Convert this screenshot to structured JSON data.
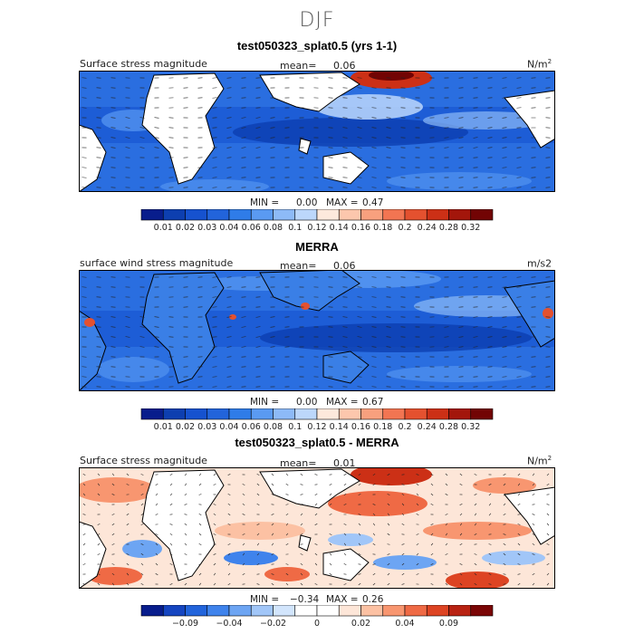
{
  "suptitle": "DJF",
  "colors": {
    "seq": [
      "#081d8c",
      "#0d3fb0",
      "#1652cf",
      "#2264db",
      "#2f7ce8",
      "#5a9af2",
      "#8dbaf7",
      "#bcd7fb",
      "#fde9dc",
      "#fcc7ad",
      "#f8a07e",
      "#f27552",
      "#e4512f",
      "#cc3016",
      "#a3160b",
      "#720404"
    ],
    "div": [
      "#081d8c",
      "#1545c0",
      "#2264db",
      "#3f83ec",
      "#6da5f3",
      "#a1c6f8",
      "#d2e5fc",
      "#ffffff",
      "#ffffff",
      "#fde6d8",
      "#fcc1a3",
      "#f89670",
      "#ef6a45",
      "#dd4423",
      "#b82212",
      "#7a0606"
    ]
  },
  "panels": [
    {
      "title": "test050323_splat0.5 (yrs 1-1)",
      "left_label": "Surface stress magnitude",
      "mean_label": "mean=",
      "mean_value": "0.06",
      "unit_base": "N/m",
      "unit_sup": "2",
      "min_label": "MIN =",
      "min_value": "0.00",
      "max_label": "MAX =",
      "max_value": "0.47",
      "colorbar_ticks": [
        "0.01",
        "0.02",
        "0.03",
        "0.04",
        "0.06",
        "0.08",
        "0.1",
        "0.12",
        "0.14",
        "0.16",
        "0.18",
        "0.2",
        "0.24",
        "0.28",
        "0.32"
      ]
    },
    {
      "title": "MERRA",
      "left_label": "surface wind stress magnitude",
      "mean_label": "mean=",
      "mean_value": "0.06",
      "unit_base": "m/s2",
      "unit_sup": "",
      "min_label": "MIN =",
      "min_value": "0.00",
      "max_label": "MAX =",
      "max_value": "0.67",
      "colorbar_ticks": [
        "0.01",
        "0.02",
        "0.03",
        "0.04",
        "0.06",
        "0.08",
        "0.1",
        "0.12",
        "0.14",
        "0.16",
        "0.18",
        "0.2",
        "0.24",
        "0.28",
        "0.32"
      ]
    },
    {
      "title": "test050323_splat0.5 - MERRA",
      "left_label": "Surface stress magnitude",
      "mean_label": "mean=",
      "mean_value": "0.01",
      "unit_base": "N/m",
      "unit_sup": "2",
      "min_label": "MIN =",
      "min_value": "−0.34",
      "max_label": "MAX =",
      "max_value": "0.26",
      "colorbar_ticks": [
        "",
        "−0.09",
        "",
        "−0.04",
        "",
        "−0.02",
        "",
        "0",
        "",
        "0.02",
        "",
        "0.04",
        "",
        "0.09",
        ""
      ]
    }
  ],
  "chart_data": [
    {
      "type": "heatmap",
      "title": "test050323_splat0.5 (yrs 1-1)",
      "field": "Surface stress magnitude",
      "units": "N/m2",
      "mean": 0.06,
      "min": 0.0,
      "max": 0.47,
      "contour_levels": [
        0.01,
        0.02,
        0.03,
        0.04,
        0.06,
        0.08,
        0.1,
        0.12,
        0.14,
        0.16,
        0.18,
        0.2,
        0.24,
        0.28,
        0.32
      ],
      "overlay": "wind stress vectors"
    },
    {
      "type": "heatmap",
      "title": "MERRA",
      "field": "surface wind stress magnitude",
      "units": "m/s2",
      "mean": 0.06,
      "min": 0.0,
      "max": 0.67,
      "contour_levels": [
        0.01,
        0.02,
        0.03,
        0.04,
        0.06,
        0.08,
        0.1,
        0.12,
        0.14,
        0.16,
        0.18,
        0.2,
        0.24,
        0.28,
        0.32
      ],
      "overlay": "wind stress vectors"
    },
    {
      "type": "heatmap",
      "title": "test050323_splat0.5 - MERRA",
      "field": "Surface stress magnitude",
      "units": "N/m2",
      "mean": 0.01,
      "min": -0.34,
      "max": 0.26,
      "contour_levels": [
        -0.09,
        -0.04,
        -0.02,
        0,
        0.02,
        0.04,
        0.09
      ],
      "overlay": "wind stress vectors"
    }
  ]
}
